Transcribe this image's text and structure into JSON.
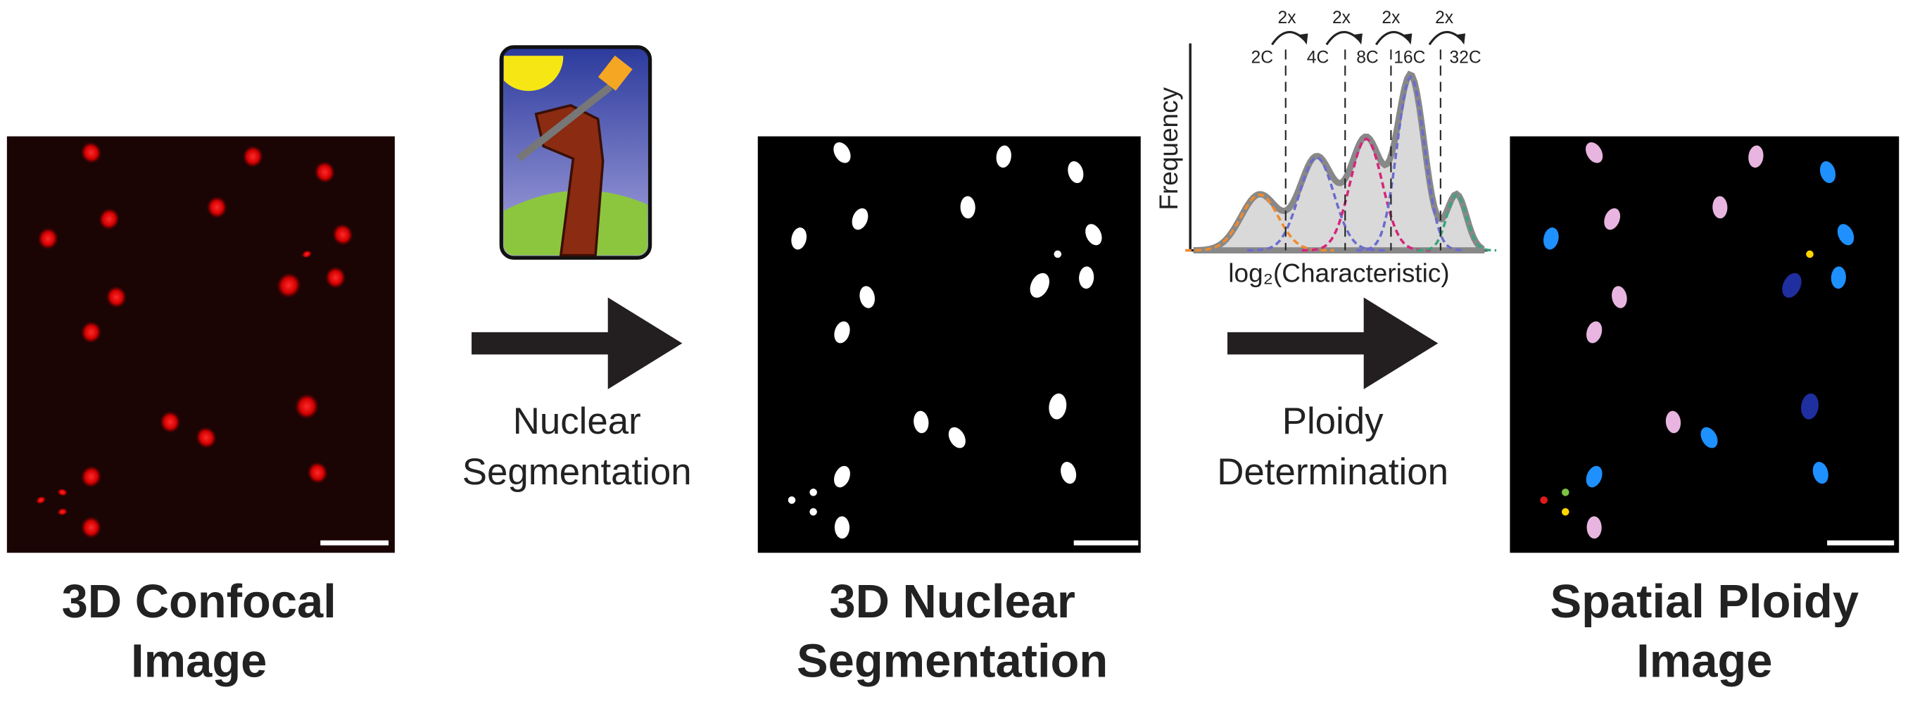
{
  "panels": [
    {
      "title_lines": [
        "3D Confocal",
        "Image"
      ]
    },
    {
      "title_lines": [
        "3D Nuclear",
        "Segmentation"
      ]
    },
    {
      "title_lines": [
        "Spatial Ploidy",
        "Image"
      ]
    }
  ],
  "steps": [
    {
      "lines": [
        "Nuclear",
        "Segmentation"
      ]
    },
    {
      "lines": [
        "Ploidy",
        "Determination"
      ]
    }
  ],
  "histogram": {
    "y_label": "Frequency",
    "x_label": "log₂(Characteristic)",
    "ploidy_labels": [
      "2C",
      "4C",
      "8C",
      "16C",
      "32C"
    ],
    "fold_labels": [
      "2x",
      "2x",
      "2x",
      "2x"
    ]
  }
}
